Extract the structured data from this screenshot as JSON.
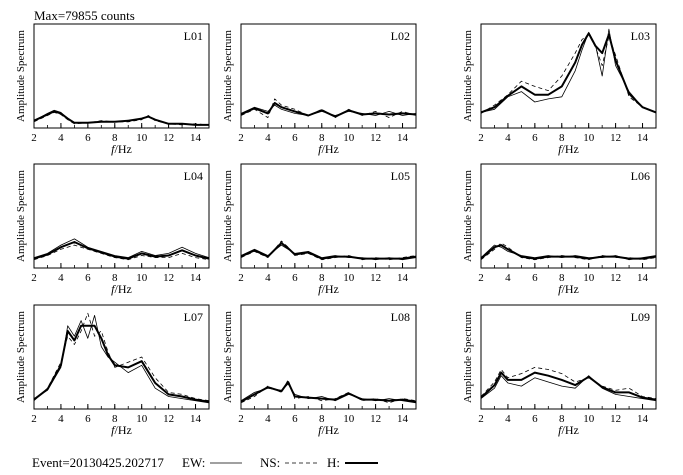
{
  "header": {
    "max_label": "Max=79855 counts"
  },
  "footer": {
    "event_label": "Event=20130425.202717",
    "legend": [
      {
        "label": "EW:",
        "style": "thin"
      },
      {
        "label": "NS:",
        "style": "dashed"
      },
      {
        "label": "H:",
        "style": "thick"
      }
    ]
  },
  "chart_data": {
    "type": "line",
    "axes": {
      "xlabel_italic": "f",
      "xlabel_unit": "/Hz",
      "ylabel": "Amplitude Spectrum",
      "xlim": [
        2,
        15
      ],
      "ylim": [
        0,
        1
      ],
      "xticks": [
        2,
        4,
        6,
        8,
        10,
        12,
        14
      ]
    },
    "panels": [
      {
        "label": "L01",
        "x": [
          2,
          3,
          3.5,
          4,
          4.5,
          5,
          6,
          7,
          8,
          9,
          10,
          10.5,
          11,
          12,
          13,
          14,
          15
        ],
        "series": [
          {
            "name": "EW",
            "values": [
              0.07,
              0.14,
              0.17,
              0.15,
              0.09,
              0.05,
              0.05,
              0.06,
              0.06,
              0.07,
              0.09,
              0.11,
              0.08,
              0.04,
              0.04,
              0.03,
              0.03
            ]
          },
          {
            "name": "NS",
            "values": [
              0.06,
              0.12,
              0.15,
              0.13,
              0.08,
              0.04,
              0.05,
              0.07,
              0.06,
              0.06,
              0.08,
              0.12,
              0.07,
              0.04,
              0.03,
              0.04,
              0.03
            ]
          },
          {
            "name": "H",
            "values": [
              0.07,
              0.13,
              0.16,
              0.14,
              0.09,
              0.05,
              0.05,
              0.06,
              0.06,
              0.07,
              0.09,
              0.11,
              0.08,
              0.04,
              0.04,
              0.03,
              0.03
            ]
          }
        ]
      },
      {
        "label": "L02",
        "x": [
          2,
          3,
          4,
          4.5,
          5,
          6,
          7,
          8,
          9,
          10,
          11,
          12,
          13,
          14,
          15
        ],
        "series": [
          {
            "name": "EW",
            "values": [
              0.14,
              0.2,
              0.16,
              0.22,
              0.18,
              0.14,
              0.12,
              0.16,
              0.12,
              0.16,
              0.14,
              0.12,
              0.16,
              0.12,
              0.14
            ]
          },
          {
            "name": "NS",
            "values": [
              0.12,
              0.18,
              0.1,
              0.28,
              0.22,
              0.18,
              0.12,
              0.18,
              0.1,
              0.18,
              0.12,
              0.16,
              0.1,
              0.16,
              0.12
            ]
          },
          {
            "name": "H",
            "values": [
              0.13,
              0.19,
              0.14,
              0.24,
              0.2,
              0.16,
              0.12,
              0.17,
              0.11,
              0.17,
              0.13,
              0.14,
              0.13,
              0.14,
              0.13
            ]
          }
        ]
      },
      {
        "label": "L03",
        "x": [
          2,
          3,
          4,
          5,
          6,
          7,
          8,
          9,
          9.5,
          10,
          10.5,
          11,
          11.5,
          12,
          13,
          14,
          15
        ],
        "series": [
          {
            "name": "EW",
            "values": [
              0.15,
              0.18,
              0.3,
              0.35,
              0.25,
              0.28,
              0.3,
              0.55,
              0.75,
              0.92,
              0.8,
              0.5,
              0.95,
              0.6,
              0.35,
              0.2,
              0.15
            ]
          },
          {
            "name": "NS",
            "values": [
              0.14,
              0.22,
              0.32,
              0.45,
              0.4,
              0.36,
              0.5,
              0.72,
              0.85,
              0.9,
              0.78,
              0.6,
              0.88,
              0.7,
              0.3,
              0.2,
              0.15
            ]
          },
          {
            "name": "H",
            "values": [
              0.15,
              0.2,
              0.31,
              0.4,
              0.32,
              0.32,
              0.4,
              0.63,
              0.8,
              0.91,
              0.79,
              0.72,
              0.9,
              0.65,
              0.33,
              0.2,
              0.15
            ]
          }
        ]
      },
      {
        "label": "L04",
        "x": [
          2,
          3,
          4,
          5,
          5.5,
          6,
          7,
          8,
          9,
          10,
          11,
          12,
          13,
          14,
          15
        ],
        "series": [
          {
            "name": "EW",
            "values": [
              0.1,
              0.14,
              0.22,
              0.28,
              0.24,
              0.2,
              0.16,
              0.12,
              0.1,
              0.16,
              0.12,
              0.14,
              0.2,
              0.14,
              0.1
            ]
          },
          {
            "name": "NS",
            "values": [
              0.08,
              0.12,
              0.18,
              0.22,
              0.2,
              0.18,
              0.14,
              0.1,
              0.08,
              0.12,
              0.1,
              0.1,
              0.14,
              0.1,
              0.08
            ]
          },
          {
            "name": "H",
            "values": [
              0.09,
              0.13,
              0.2,
              0.25,
              0.22,
              0.19,
              0.15,
              0.11,
              0.09,
              0.14,
              0.11,
              0.12,
              0.17,
              0.12,
              0.09
            ]
          }
        ]
      },
      {
        "label": "L05",
        "x": [
          2,
          3,
          4,
          5,
          5.5,
          6,
          7,
          8,
          9,
          10,
          11,
          12,
          13,
          14,
          15
        ],
        "series": [
          {
            "name": "EW",
            "values": [
              0.12,
              0.18,
              0.12,
              0.22,
              0.18,
              0.14,
              0.16,
              0.1,
              0.12,
              0.1,
              0.1,
              0.08,
              0.1,
              0.08,
              0.1
            ]
          },
          {
            "name": "NS",
            "values": [
              0.1,
              0.16,
              0.1,
              0.26,
              0.2,
              0.12,
              0.14,
              0.08,
              0.1,
              0.12,
              0.08,
              0.1,
              0.08,
              0.1,
              0.12
            ]
          },
          {
            "name": "H",
            "values": [
              0.11,
              0.17,
              0.11,
              0.24,
              0.19,
              0.13,
              0.15,
              0.09,
              0.11,
              0.11,
              0.09,
              0.09,
              0.09,
              0.09,
              0.11
            ]
          }
        ]
      },
      {
        "label": "L06",
        "x": [
          2,
          3,
          3.5,
          4,
          5,
          6,
          7,
          8,
          9,
          10,
          11,
          12,
          13,
          14,
          15
        ],
        "series": [
          {
            "name": "EW",
            "values": [
              0.1,
              0.22,
              0.2,
              0.16,
              0.12,
              0.1,
              0.12,
              0.1,
              0.12,
              0.1,
              0.1,
              0.12,
              0.08,
              0.1,
              0.12
            ]
          },
          {
            "name": "NS",
            "values": [
              0.08,
              0.18,
              0.24,
              0.2,
              0.1,
              0.08,
              0.1,
              0.12,
              0.1,
              0.08,
              0.12,
              0.1,
              0.1,
              0.08,
              0.1
            ]
          },
          {
            "name": "H",
            "values": [
              0.09,
              0.2,
              0.22,
              0.18,
              0.11,
              0.09,
              0.11,
              0.11,
              0.11,
              0.09,
              0.11,
              0.11,
              0.09,
              0.09,
              0.11
            ]
          }
        ]
      },
      {
        "label": "L07",
        "x": [
          2,
          3,
          4,
          4.5,
          5,
          5.5,
          6,
          6.5,
          7,
          7.5,
          8,
          9,
          10,
          11,
          12,
          13,
          14,
          15
        ],
        "series": [
          {
            "name": "EW",
            "values": [
              0.1,
              0.18,
              0.4,
              0.8,
              0.7,
              0.85,
              0.68,
              0.9,
              0.6,
              0.5,
              0.45,
              0.35,
              0.42,
              0.2,
              0.12,
              0.1,
              0.08,
              0.06
            ]
          },
          {
            "name": "NS",
            "values": [
              0.08,
              0.2,
              0.45,
              0.7,
              0.62,
              0.75,
              0.92,
              0.7,
              0.75,
              0.55,
              0.4,
              0.45,
              0.5,
              0.3,
              0.16,
              0.14,
              0.1,
              0.08
            ]
          },
          {
            "name": "H",
            "values": [
              0.09,
              0.19,
              0.42,
              0.75,
              0.66,
              0.8,
              0.8,
              0.8,
              0.68,
              0.52,
              0.42,
              0.4,
              0.46,
              0.25,
              0.14,
              0.12,
              0.09,
              0.07
            ]
          }
        ]
      },
      {
        "label": "L08",
        "x": [
          2,
          3,
          4,
          5,
          5.5,
          6,
          7,
          8,
          9,
          10,
          11,
          12,
          13,
          14,
          15
        ],
        "series": [
          {
            "name": "EW",
            "values": [
              0.08,
              0.16,
              0.2,
              0.18,
              0.24,
              0.14,
              0.1,
              0.12,
              0.08,
              0.14,
              0.1,
              0.08,
              0.1,
              0.08,
              0.06
            ]
          },
          {
            "name": "NS",
            "values": [
              0.06,
              0.12,
              0.22,
              0.16,
              0.28,
              0.1,
              0.12,
              0.08,
              0.1,
              0.16,
              0.08,
              0.1,
              0.06,
              0.1,
              0.08
            ]
          },
          {
            "name": "H",
            "values": [
              0.07,
              0.14,
              0.21,
              0.17,
              0.26,
              0.12,
              0.11,
              0.1,
              0.09,
              0.15,
              0.09,
              0.09,
              0.08,
              0.09,
              0.07
            ]
          }
        ]
      },
      {
        "label": "L09",
        "x": [
          2,
          3,
          3.5,
          4,
          5,
          6,
          7,
          8,
          9,
          10,
          11,
          12,
          13,
          14,
          15
        ],
        "series": [
          {
            "name": "EW",
            "values": [
              0.1,
              0.2,
              0.32,
              0.25,
              0.22,
              0.3,
              0.26,
              0.22,
              0.2,
              0.32,
              0.2,
              0.14,
              0.12,
              0.1,
              0.08
            ]
          },
          {
            "name": "NS",
            "values": [
              0.12,
              0.26,
              0.38,
              0.3,
              0.34,
              0.4,
              0.38,
              0.34,
              0.26,
              0.3,
              0.22,
              0.18,
              0.2,
              0.12,
              0.1
            ]
          },
          {
            "name": "H",
            "values": [
              0.11,
              0.23,
              0.35,
              0.28,
              0.28,
              0.35,
              0.32,
              0.28,
              0.23,
              0.31,
              0.21,
              0.16,
              0.16,
              0.11,
              0.09
            ]
          }
        ]
      }
    ]
  }
}
